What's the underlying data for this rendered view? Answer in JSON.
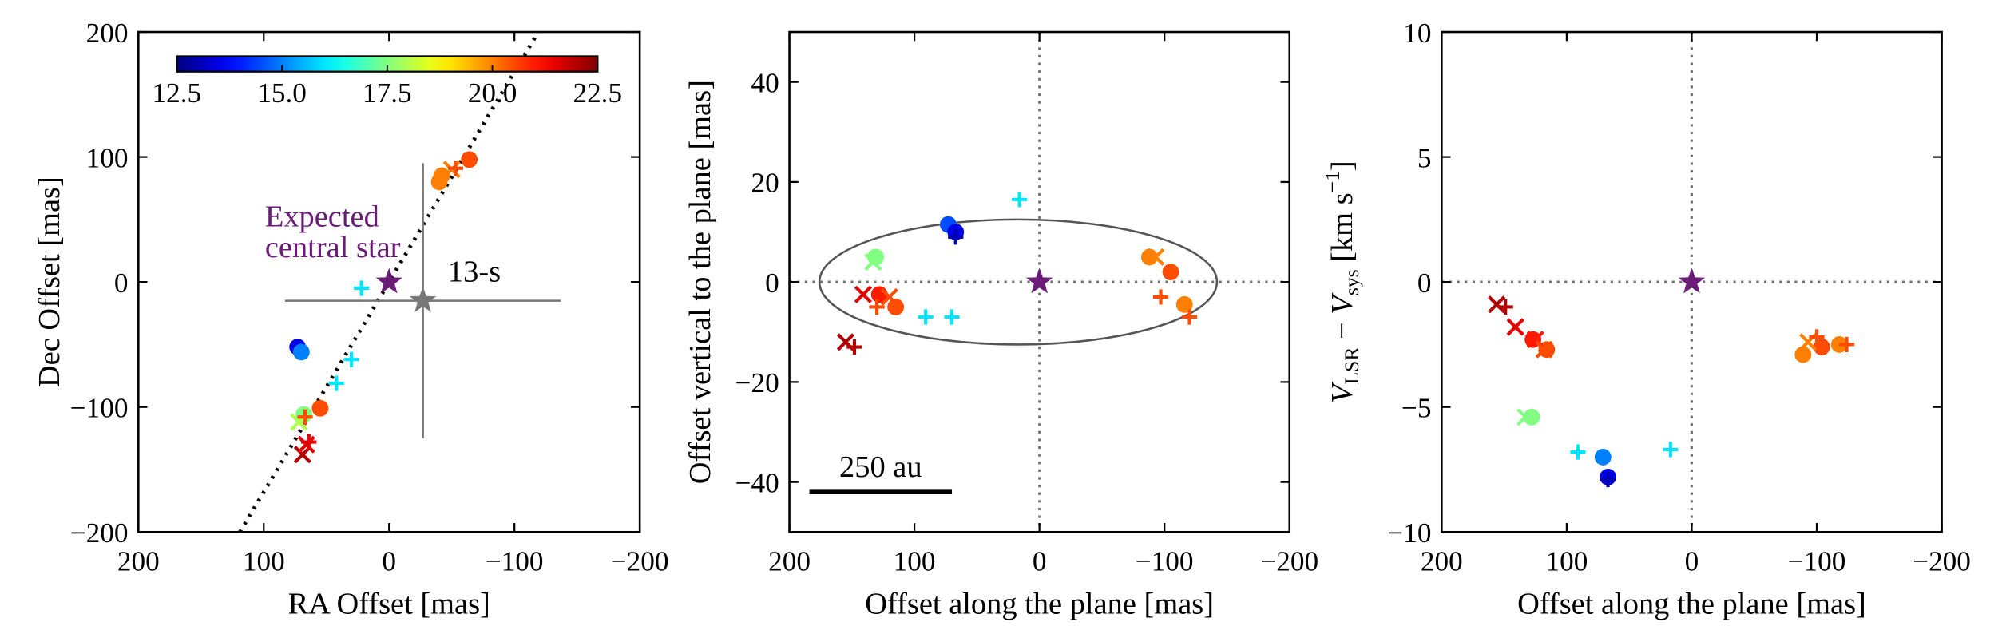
{
  "chart_data": [
    {
      "type": "scatter",
      "xlabel": "RA Offset [mas]",
      "ylabel": "Dec Offset [mas]",
      "xlim": [
        200,
        -200
      ],
      "ylim": [
        -200,
        200
      ],
      "xticks": [
        200,
        100,
        0,
        {
          "value": -100,
          "label": "−100"
        },
        {
          "value": -200,
          "label": "−200"
        }
      ],
      "yticks": [
        {
          "value": -200,
          "label": "−200"
        },
        {
          "value": -100,
          "label": "−100"
        },
        0,
        100,
        200
      ],
      "colorbar": {
        "colormap": "jet",
        "clim": [
          12.5,
          22.5
        ],
        "ticks": [
          12.5,
          {
            "value": 15,
            "label": "15.0"
          },
          17.5,
          {
            "value": 20,
            "label": "20.0"
          },
          22.5
        ]
      },
      "fit_line": {
        "x": [
          119,
          -119
        ],
        "y": [
          -200,
          200
        ]
      },
      "series": [
        {
          "marker": "o",
          "x": [
            -64,
            -42,
            -40,
            73,
            70,
            68,
            55
          ],
          "y": [
            98,
            85,
            80,
            -52,
            -56,
            -106,
            -101
          ],
          "c": [
            20.5,
            20,
            20,
            13.5,
            15,
            17.5,
            20.5
          ]
        },
        {
          "marker": "x",
          "x": [
            -50,
            69,
            66,
            72
          ],
          "y": [
            90,
            -138,
            -130,
            -112
          ],
          "c": [
            20,
            22,
            21.5,
            18
          ]
        },
        {
          "marker": "+",
          "x": [
            22,
            30,
            42,
            -53,
            64,
            67
          ],
          "y": [
            -5,
            -62,
            -81,
            91,
            -128,
            -108
          ],
          "c": [
            16,
            16,
            16,
            20.5,
            21.5,
            20.5
          ]
        }
      ],
      "stars": [
        {
          "x": 0,
          "y": 0,
          "color": "#6a1b78"
        },
        {
          "x": -27,
          "y": -15,
          "xerr": 110,
          "yerr": 110,
          "color": "#777777"
        }
      ],
      "annotations": [
        {
          "lines": [
            "Expected",
            "central star"
          ],
          "color": "#6a1b78"
        },
        {
          "lines": [
            "13-s"
          ],
          "color": "#000000"
        }
      ]
    },
    {
      "type": "scatter",
      "xlabel": "Offset along the plane [mas]",
      "ylabel": "Offset vertical to the plane [mas]",
      "xlim": [
        200,
        -200
      ],
      "ylim": [
        -50,
        50
      ],
      "xticks": [
        200,
        100,
        0,
        {
          "value": -100,
          "label": "−100"
        },
        {
          "value": -200,
          "label": "−200"
        }
      ],
      "yticks": [
        {
          "value": -40,
          "label": "−40"
        },
        {
          "value": -20,
          "label": "−20"
        },
        0,
        20,
        40
      ],
      "colorbar": {
        "colormap": "jet",
        "clim": [
          12.5,
          22.5
        ]
      },
      "reflines": {
        "x": 0,
        "y": 0
      },
      "ellipse": {
        "center": [
          17,
          0
        ],
        "semi_axes": [
          159,
          12.5
        ]
      },
      "scalebar": {
        "label": "250 au",
        "x": [
          184,
          70
        ],
        "y": -42
      },
      "series": [
        {
          "marker": "o",
          "x": [
            73,
            67,
            131,
            128,
            115,
            -88,
            -105,
            -116
          ],
          "y": [
            11.5,
            10,
            5,
            -2.5,
            -5,
            5,
            2,
            -4.5
          ],
          "c": [
            14.5,
            13.5,
            17.5,
            21,
            20.5,
            20,
            20.5,
            20
          ]
        },
        {
          "marker": "x",
          "x": [
            155,
            141,
            120,
            -93,
            133
          ],
          "y": [
            -12,
            -2.5,
            -3,
            5,
            4
          ],
          "c": [
            22,
            21.5,
            20.5,
            20,
            17.5
          ]
        },
        {
          "marker": "+",
          "x": [
            16,
            67,
            91,
            70,
            148,
            130,
            -97,
            -120
          ],
          "y": [
            16.5,
            9,
            -7,
            -7,
            -13,
            -5,
            -3,
            -7
          ],
          "c": [
            16,
            13,
            16,
            16,
            22,
            20.5,
            20.5,
            20.5
          ]
        }
      ],
      "stars": [
        {
          "x": 0,
          "y": 0,
          "color": "#6a1b78"
        }
      ]
    },
    {
      "type": "scatter",
      "xlabel": "Offset along the plane [mas]",
      "ylabel": [
        "V",
        "LSR",
        " − ",
        "V",
        "sys",
        " [km s",
        "−1",
        "]"
      ],
      "xlim": [
        200,
        -200
      ],
      "ylim": [
        -10,
        10
      ],
      "xticks": [
        200,
        100,
        0,
        {
          "value": -100,
          "label": "−100"
        },
        {
          "value": -200,
          "label": "−200"
        }
      ],
      "yticks": [
        {
          "value": -10,
          "label": "−10"
        },
        {
          "value": -5,
          "label": "−5"
        },
        0,
        5,
        10
      ],
      "colorbar": {
        "colormap": "jet",
        "clim": [
          12.5,
          22.5
        ]
      },
      "reflines": {
        "x": 0,
        "y": 0
      },
      "series": [
        {
          "marker": "o",
          "x": [
            127,
            116,
            128,
            71,
            67,
            -89,
            -104,
            -118
          ],
          "y": [
            -2.3,
            -2.7,
            -5.4,
            -7,
            -7.8,
            -2.9,
            -2.6,
            -2.5
          ],
          "c": [
            21,
            20.5,
            17.5,
            15,
            13.5,
            20,
            20.5,
            20
          ]
        },
        {
          "marker": "x",
          "x": [
            156,
            141,
            125,
            118,
            133,
            -93
          ],
          "y": [
            -0.9,
            -1.8,
            -2.3,
            -2.7,
            -5.4,
            -2.4
          ],
          "c": [
            22,
            21.5,
            21,
            20.5,
            17.5,
            20
          ]
        },
        {
          "marker": "+",
          "x": [
            149,
            91,
            17,
            67,
            -100,
            -124
          ],
          "y": [
            -1,
            -6.8,
            -6.7,
            -7.9,
            -2.2,
            -2.5
          ],
          "c": [
            22,
            16,
            16,
            13,
            20.5,
            20.5
          ]
        }
      ],
      "stars": [
        {
          "x": 0,
          "y": 0,
          "color": "#6a1b78"
        }
      ]
    }
  ]
}
